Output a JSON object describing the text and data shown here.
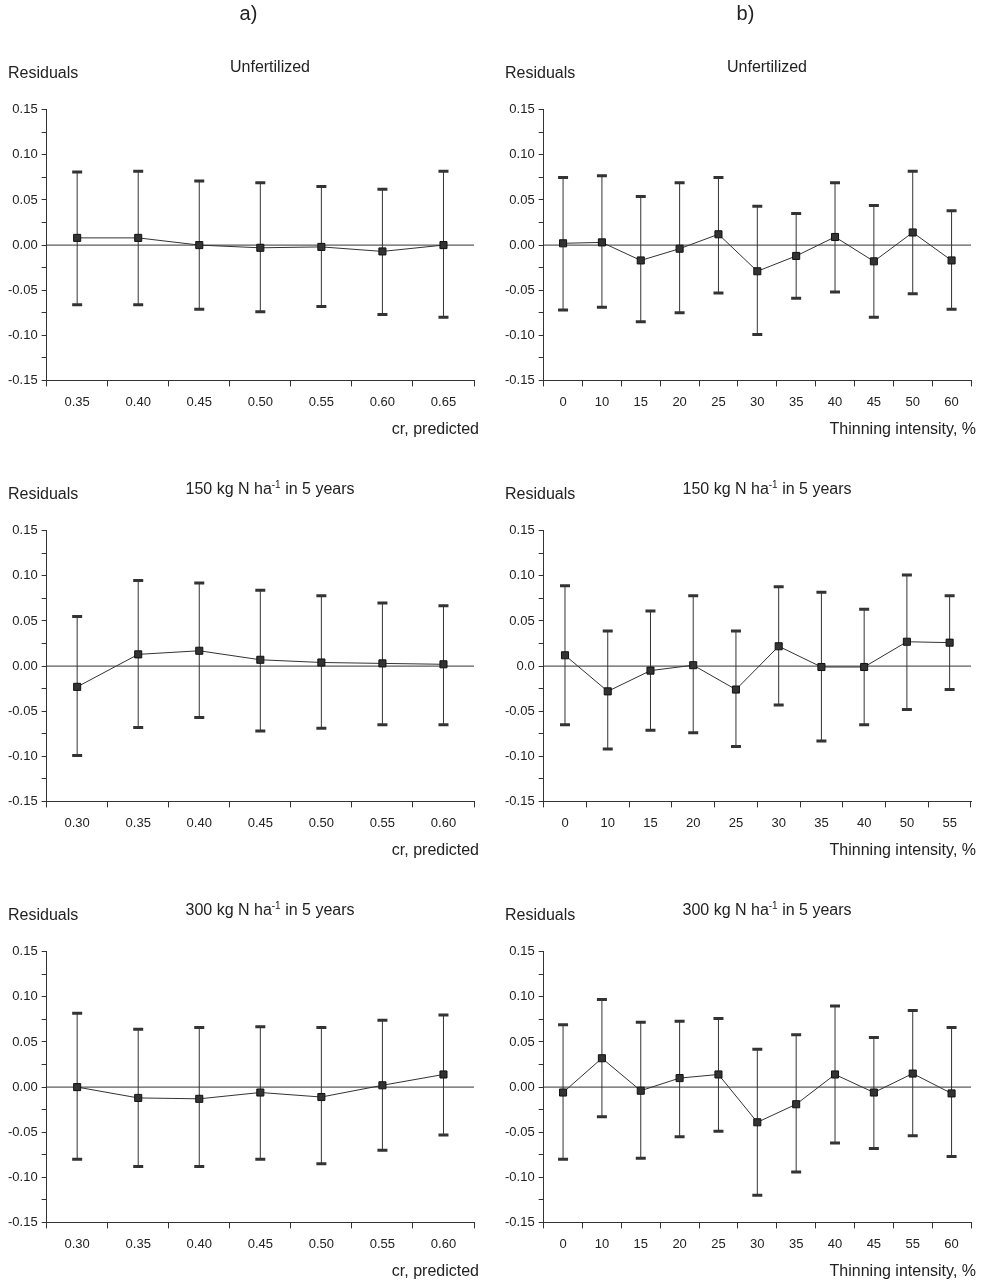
{
  "chart_data": [
    {
      "type": "line",
      "annotations": [
        "a)"
      ],
      "title": "Unfertilized",
      "ylabel": "Residuals",
      "xlabel": "cr, predicted",
      "categories": [
        "0.35",
        "0.40",
        "0.45",
        "0.50",
        "0.55",
        "0.60",
        "0.65"
      ],
      "series": [
        {
          "color": "#333333",
          "values": [
            0.008,
            0.008,
            0.0,
            -0.003,
            -0.002,
            -0.007,
            0.0
          ],
          "errors": [
            [
              -0.066,
              0.081
            ],
            [
              -0.066,
              0.082
            ],
            [
              -0.071,
              0.071
            ],
            [
              -0.074,
              0.069
            ],
            [
              -0.068,
              0.065
            ],
            [
              -0.077,
              0.062
            ],
            [
              -0.08,
              0.082
            ]
          ]
        }
      ],
      "ylim": [
        -0.15,
        0.15
      ],
      "yticks": [
        -0.15,
        {
          "value": -0.125,
          "label": null
        },
        {
          "value": -0.1,
          "label": "-0.10"
        },
        {
          "value": -0.075,
          "label": null
        },
        -0.05,
        {
          "value": -0.025,
          "label": null
        },
        {
          "value": 0,
          "label": "0.00"
        },
        {
          "value": 0.025,
          "label": null
        },
        0.05,
        {
          "value": 0.075,
          "label": null
        },
        {
          "value": 0.1,
          "label": "0.10"
        },
        {
          "value": 0.125,
          "label": null
        },
        0.15
      ],
      "ref_lines": [
        {
          "axis": "y",
          "value": 0
        }
      ],
      "marker": "square"
    },
    {
      "type": "line",
      "annotations": [
        "b)"
      ],
      "title": "Unfertilized",
      "ylabel": "Residuals",
      "xlabel": "Thinning intensity, %",
      "categories": [
        "0",
        "10",
        "15",
        "20",
        "25",
        "30",
        "35",
        "40",
        "45",
        "50",
        "60"
      ],
      "series": [
        {
          "color": "#333333",
          "values": [
            0.002,
            0.003,
            -0.017,
            -0.004,
            0.012,
            -0.029,
            -0.012,
            0.009,
            -0.018,
            0.014,
            -0.017
          ],
          "errors": [
            [
              -0.072,
              0.075
            ],
            [
              -0.069,
              0.077
            ],
            [
              -0.085,
              0.054
            ],
            [
              -0.075,
              0.069
            ],
            [
              -0.053,
              0.075
            ],
            [
              -0.099,
              0.043
            ],
            [
              -0.059,
              0.035
            ],
            [
              -0.052,
              0.069
            ],
            [
              -0.08,
              0.044
            ],
            [
              -0.054,
              0.082
            ],
            [
              -0.071,
              0.038
            ]
          ]
        }
      ],
      "ylim": [
        -0.15,
        0.15
      ],
      "yticks": [
        -0.15,
        {
          "value": -0.125,
          "label": null
        },
        {
          "value": -0.1,
          "label": "-0.10"
        },
        {
          "value": -0.075,
          "label": null
        },
        -0.05,
        {
          "value": -0.025,
          "label": null
        },
        {
          "value": 0,
          "label": "0.00"
        },
        {
          "value": 0.025,
          "label": null
        },
        0.05,
        {
          "value": 0.075,
          "label": null
        },
        {
          "value": 0.1,
          "label": "0.10"
        },
        {
          "value": 0.125,
          "label": null
        },
        0.15
      ],
      "ref_lines": [
        {
          "axis": "y",
          "value": 0
        }
      ],
      "marker": "square"
    },
    {
      "type": "line",
      "title": "150 kg N ha$^{-1}$ in 5 years",
      "ylabel": "Residuals",
      "xlabel": "cr, predicted",
      "categories": [
        "0.30",
        "0.35",
        "0.40",
        "0.45",
        "0.50",
        "0.55",
        "0.60"
      ],
      "series": [
        {
          "color": "#333333",
          "values": [
            -0.023,
            0.013,
            0.017,
            0.007,
            0.004,
            0.003,
            0.002
          ],
          "errors": [
            [
              -0.099,
              0.055
            ],
            [
              -0.068,
              0.095
            ],
            [
              -0.057,
              0.092
            ],
            [
              -0.072,
              0.084
            ],
            [
              -0.069,
              0.078
            ],
            [
              -0.065,
              0.07
            ],
            [
              -0.065,
              0.067
            ]
          ]
        }
      ],
      "ylim": [
        -0.15,
        0.15
      ],
      "yticks": [
        -0.15,
        {
          "value": -0.125,
          "label": null
        },
        {
          "value": -0.1,
          "label": "-0.10"
        },
        {
          "value": -0.075,
          "label": null
        },
        -0.05,
        {
          "value": -0.025,
          "label": null
        },
        {
          "value": 0,
          "label": "0.00"
        },
        {
          "value": 0.025,
          "label": null
        },
        0.05,
        {
          "value": 0.075,
          "label": null
        },
        {
          "value": 0.1,
          "label": "0.10"
        },
        {
          "value": 0.125,
          "label": null
        },
        0.15
      ],
      "ref_lines": [
        {
          "axis": "y",
          "value": 0
        }
      ],
      "marker": "square"
    },
    {
      "type": "line",
      "title": "150 kg N ha$^{-1}$ in 5 years",
      "ylabel": "Residuals",
      "xlabel": "Thinning intensity, %",
      "categories": [
        "0",
        "10",
        "15",
        "20",
        "25",
        "30",
        "35",
        "40",
        "50",
        "55"
      ],
      "series": [
        {
          "color": "#333333",
          "values": [
            0.012,
            -0.028,
            -0.005,
            0.001,
            -0.026,
            0.022,
            -0.001,
            -0.001,
            0.027,
            0.026
          ],
          "errors": [
            [
              -0.065,
              0.089
            ],
            [
              -0.092,
              0.039
            ],
            [
              -0.071,
              0.061
            ],
            [
              -0.074,
              0.078
            ],
            [
              -0.089,
              0.039
            ],
            [
              -0.043,
              0.088
            ],
            [
              -0.083,
              0.082
            ],
            [
              -0.065,
              0.063
            ],
            [
              -0.048,
              0.101
            ],
            [
              -0.026,
              0.078
            ]
          ]
        }
      ],
      "ylim": [
        -0.15,
        0.15
      ],
      "yticks": [
        -0.15,
        {
          "value": -0.125,
          "label": null
        },
        {
          "value": -0.1,
          "label": "-0.10"
        },
        {
          "value": -0.075,
          "label": null
        },
        -0.05,
        {
          "value": -0.025,
          "label": null
        },
        {
          "value": 0,
          "label": "0.0"
        },
        {
          "value": 0.025,
          "label": null
        },
        0.05,
        {
          "value": 0.075,
          "label": null
        },
        {
          "value": 0.1,
          "label": "0.10"
        },
        {
          "value": 0.125,
          "label": null
        },
        0.15
      ],
      "ref_lines": [
        {
          "axis": "y",
          "value": 0
        }
      ],
      "marker": "square"
    },
    {
      "type": "line",
      "title": "300 kg N ha$^{-1}$ in 5 years",
      "ylabel": "Residuals",
      "xlabel": "cr, predicted",
      "categories": [
        "0.30",
        "0.35",
        "0.40",
        "0.45",
        "0.50",
        "0.55",
        "0.60"
      ],
      "series": [
        {
          "color": "#333333",
          "values": [
            0.0,
            -0.012,
            -0.013,
            -0.006,
            -0.011,
            0.002,
            0.014
          ],
          "errors": [
            [
              -0.08,
              0.082
            ],
            [
              -0.088,
              0.064
            ],
            [
              -0.088,
              0.066
            ],
            [
              -0.08,
              0.067
            ],
            [
              -0.085,
              0.066
            ],
            [
              -0.07,
              0.074
            ],
            [
              -0.053,
              0.08
            ]
          ]
        }
      ],
      "ylim": [
        -0.15,
        0.15
      ],
      "yticks": [
        -0.15,
        {
          "value": -0.125,
          "label": null
        },
        {
          "value": -0.1,
          "label": "-0.10"
        },
        {
          "value": -0.075,
          "label": null
        },
        -0.05,
        {
          "value": -0.025,
          "label": null
        },
        {
          "value": 0,
          "label": "0.00"
        },
        {
          "value": 0.025,
          "label": null
        },
        0.05,
        {
          "value": 0.075,
          "label": null
        },
        {
          "value": 0.1,
          "label": "0.10"
        },
        {
          "value": 0.125,
          "label": null
        },
        0.15
      ],
      "ref_lines": [
        {
          "axis": "y",
          "value": 0
        }
      ],
      "marker": "square"
    },
    {
      "type": "line",
      "title": "300 kg N ha$^{-1}$ in 5 years",
      "ylabel": "Residuals",
      "xlabel": "Thinning intensity, %",
      "categories": [
        "0",
        "10",
        "15",
        "20",
        "25",
        "30",
        "35",
        "40",
        "45",
        "55",
        "60"
      ],
      "series": [
        {
          "color": "#333333",
          "values": [
            -0.006,
            0.032,
            -0.004,
            0.01,
            0.014,
            -0.039,
            -0.019,
            0.014,
            -0.006,
            0.015,
            -0.007
          ],
          "errors": [
            [
              -0.08,
              0.069
            ],
            [
              -0.033,
              0.097
            ],
            [
              -0.079,
              0.072
            ],
            [
              -0.055,
              0.073
            ],
            [
              -0.049,
              0.076
            ],
            [
              -0.12,
              0.042
            ],
            [
              -0.094,
              0.058
            ],
            [
              -0.062,
              0.09
            ],
            [
              -0.068,
              0.055
            ],
            [
              -0.054,
              0.085
            ],
            [
              -0.077,
              0.066
            ]
          ]
        }
      ],
      "ylim": [
        -0.15,
        0.15
      ],
      "yticks": [
        -0.15,
        {
          "value": -0.125,
          "label": null
        },
        {
          "value": -0.1,
          "label": "-0.10"
        },
        {
          "value": -0.075,
          "label": null
        },
        -0.05,
        {
          "value": -0.025,
          "label": null
        },
        {
          "value": 0,
          "label": "0.00"
        },
        {
          "value": 0.025,
          "label": null
        },
        0.05,
        {
          "value": 0.075,
          "label": null
        },
        {
          "value": 0.1,
          "label": "0.10"
        },
        {
          "value": 0.125,
          "label": null
        },
        0.15
      ],
      "ref_lines": [
        {
          "axis": "y",
          "value": 0
        }
      ],
      "marker": "square"
    }
  ]
}
